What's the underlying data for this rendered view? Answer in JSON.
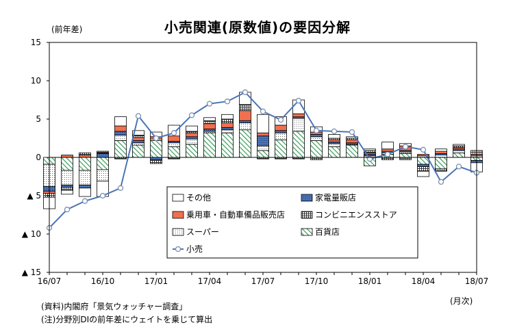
{
  "title": "小売関連(原数値)の要因分解",
  "y_unit_label": "(前年差)",
  "x_unit_label": "(月次)",
  "notes": [
    "(資料)内閣府「景気ウォッチャー調査」",
    "(注)分野別DIの前年差にウェイトを乗じて算出"
  ],
  "chart_data": {
    "type": "bar",
    "stacked": true,
    "title": "小売関連(原数値)の要因分解",
    "ylabel": "(前年差)",
    "xlabel": "(月次)",
    "ylim": [
      -15,
      15
    ],
    "yticks": [
      15,
      10,
      5,
      0,
      -5,
      -10,
      -15
    ],
    "ytick_labels": [
      "15",
      "10",
      "5",
      "0",
      "▲ 5",
      "▲ 10",
      "▲ 15"
    ],
    "grid": false,
    "legend_position": "bottom-right-inside",
    "categories": [
      "16/07",
      "16/08",
      "16/09",
      "16/10",
      "16/11",
      "16/12",
      "17/01",
      "17/02",
      "17/03",
      "17/04",
      "17/05",
      "17/06",
      "17/07",
      "17/08",
      "17/09",
      "17/10",
      "17/11",
      "17/12",
      "18/01",
      "18/02",
      "18/03",
      "18/04",
      "18/05",
      "18/06",
      "18/07"
    ],
    "xtick_labels": {
      "0": "16/07",
      "3": "16/10",
      "6": "17/01",
      "9": "17/04",
      "12": "17/07",
      "15": "17/10",
      "18": "18/01",
      "21": "18/04",
      "24": "18/07"
    },
    "series": [
      {
        "name": "百貨店",
        "kind": "bar",
        "pattern": "hatch",
        "color": "#3a9a5a",
        "values": [
          -0.9,
          -1.7,
          -1.7,
          -1.6,
          2.2,
          1.6,
          2.2,
          1.4,
          1.7,
          3.2,
          3.2,
          3.6,
          0.9,
          2.3,
          3.4,
          2.2,
          1.4,
          1.6,
          -1.1,
          0.4,
          0.5,
          -0.9,
          -1.5,
          0.6,
          -0.4
        ]
      },
      {
        "name": "スーパー",
        "kind": "bar",
        "pattern": "dots",
        "color": "#666666",
        "values": [
          -2.9,
          -1.9,
          -1.9,
          -1.5,
          0.7,
          0.3,
          0.2,
          0.5,
          0.7,
          0.2,
          0.4,
          0.9,
          0.6,
          0.9,
          1.7,
          0.5,
          0.4,
          0.1,
          0.2,
          0.2,
          0.2,
          0.2,
          0.3,
          0.3,
          0.2
        ]
      },
      {
        "name": "家電量販店",
        "kind": "bar",
        "pattern": "blue-dots",
        "color": "#4a74b8",
        "values": [
          -0.6,
          -0.3,
          -0.4,
          0.5,
          0.5,
          0.3,
          -0.3,
          0.2,
          0.3,
          0.3,
          0.3,
          0.3,
          1.3,
          0.3,
          0.2,
          0.3,
          0.2,
          0.2,
          0.2,
          0.2,
          0.2,
          -0.3,
          0.2,
          0.2,
          -0.3
        ]
      },
      {
        "name": "乗用車・自動車備品販売店",
        "kind": "bar",
        "pattern": "solid",
        "color": "#f07050",
        "values": [
          -0.3,
          0.3,
          0.3,
          0.1,
          0.7,
          0.4,
          0.3,
          0.7,
          0.5,
          0.7,
          0.6,
          1.3,
          0.4,
          0.7,
          0.4,
          0.3,
          0.3,
          0.4,
          0.2,
          0.3,
          0.6,
          0.2,
          0.3,
          0.2,
          0.2
        ]
      },
      {
        "name": "コンビニエンスストア",
        "kind": "bar",
        "pattern": "grid",
        "color": "#333333",
        "values": [
          -0.5,
          -0.4,
          0.3,
          0.2,
          -0.2,
          0.3,
          -0.5,
          -0.2,
          0.2,
          0.4,
          0.5,
          0.8,
          -0.2,
          -0.2,
          -0.2,
          -0.3,
          0.2,
          0.2,
          0.3,
          -0.3,
          -0.3,
          -0.6,
          -0.3,
          0.2,
          0.5
        ]
      },
      {
        "name": "その他",
        "kind": "bar",
        "pattern": "none",
        "color": "#ffffff",
        "values": [
          -1.5,
          -0.5,
          -1.1,
          -2.0,
          1.2,
          0.6,
          0.6,
          1.4,
          0.7,
          0.4,
          0.6,
          1.6,
          2.4,
          1.1,
          1.8,
          0.7,
          0.5,
          0.2,
          0.2,
          0.9,
          0.3,
          -0.7,
          0.3,
          0.2,
          -1.2
        ]
      },
      {
        "name": "小売",
        "kind": "line",
        "color": "#4a74b8",
        "values": [
          -9.2,
          -6.8,
          -5.7,
          -5.0,
          -4.0,
          5.4,
          2.5,
          3.2,
          5.5,
          7.0,
          7.3,
          8.5,
          6.0,
          4.9,
          7.4,
          3.5,
          3.4,
          3.3,
          -0.2,
          0.4,
          1.4,
          1.0,
          -3.2,
          -1.2,
          -2.0
        ]
      }
    ]
  }
}
